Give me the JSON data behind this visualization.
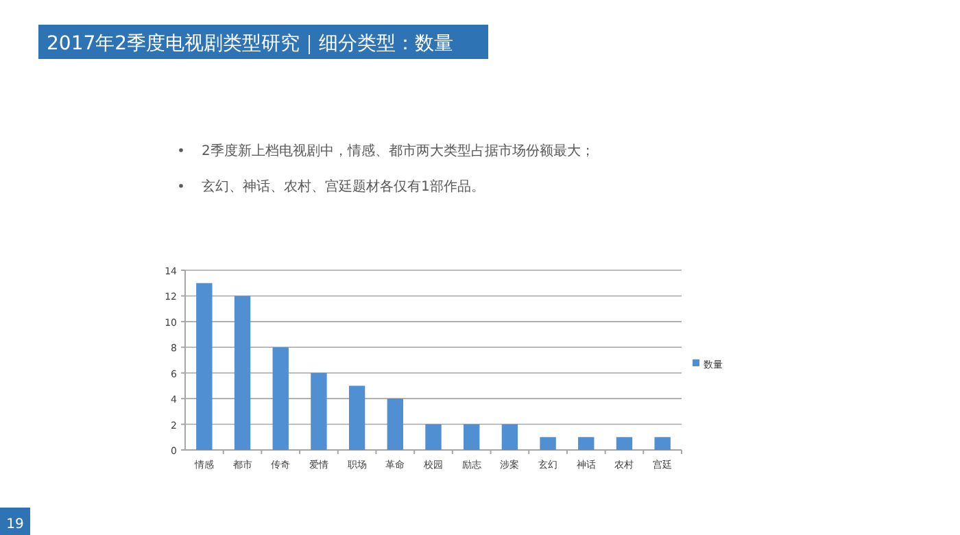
{
  "chart_data": {
    "type": "bar",
    "title": "2017年2季度电视剧类型研究｜细分类型：数量",
    "annotations": [
      "2季度新上档电视剧中，情感、都市两大类型占据市场份额最大；",
      "玄幻、神话、农村、宫廷题材各仅有1部作品。",
      "19"
    ],
    "categories": [
      "情感",
      "都市",
      "传奇",
      "爱情",
      "职场",
      "革命",
      "校园",
      "励志",
      "涉案",
      "玄幻",
      "神话",
      "农村",
      "宫廷"
    ],
    "series": [
      {
        "name": "数量",
        "color": "#4f8fd2",
        "values": [
          13,
          12,
          8,
          6,
          5,
          4,
          2,
          2,
          2,
          1,
          1,
          1,
          1
        ]
      }
    ],
    "ylim": [
      0,
      14
    ],
    "yticks": [
      0,
      2,
      4,
      6,
      8,
      10,
      12,
      14
    ],
    "grid": "y",
    "legend": "right"
  }
}
